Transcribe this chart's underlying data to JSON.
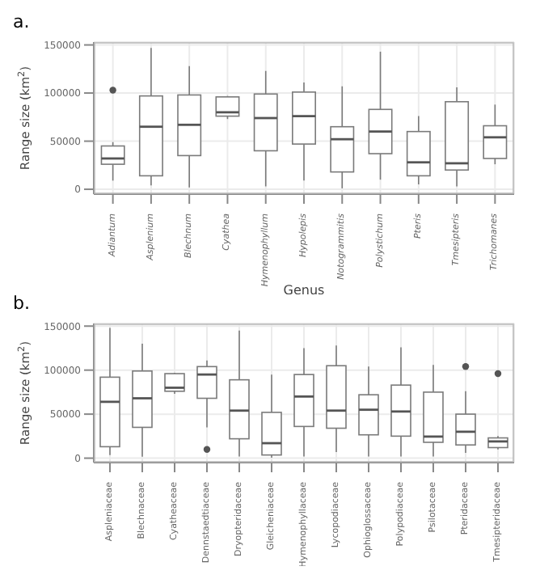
{
  "chart_data": [
    {
      "type": "box",
      "title": "a.",
      "xlabel": "Genus",
      "ylabel": "Range size (km$^{2}$)",
      "categories": [
        "Adiantum",
        "Asplenium",
        "Blechnum",
        "Cyathea",
        "Hymenophyllum",
        "Hypolepis",
        "Notogrammitis",
        "Polystichum",
        "Pteris",
        "Tmesipteris",
        "Trichomanes"
      ],
      "ylim": [
        -5000,
        153000
      ],
      "yticks": [
        0,
        50000,
        100000,
        150000
      ],
      "grid": true,
      "boxes": [
        {
          "low": 9000,
          "q1": 26000,
          "median": 32000,
          "q3": 45000,
          "high": 49000,
          "outliers": [
            103000
          ]
        },
        {
          "low": 4000,
          "q1": 14000,
          "median": 65000,
          "q3": 97000,
          "high": 147000
        },
        {
          "low": 2000,
          "q1": 35000,
          "median": 67000,
          "q3": 98000,
          "high": 128000
        },
        {
          "low": 73000,
          "q1": 76000,
          "median": 80000,
          "q3": 96000,
          "high": 97000
        },
        {
          "low": 3000,
          "q1": 40000,
          "median": 74000,
          "q3": 99000,
          "high": 123000
        },
        {
          "low": 9000,
          "q1": 47000,
          "median": 76000,
          "q3": 101000,
          "high": 111000
        },
        {
          "low": 1000,
          "q1": 18000,
          "median": 52000,
          "q3": 65000,
          "high": 107000
        },
        {
          "low": 10000,
          "q1": 37000,
          "median": 60000,
          "q3": 83000,
          "high": 143000
        },
        {
          "low": 5000,
          "q1": 14000,
          "median": 28000,
          "q3": 60000,
          "high": 76000
        },
        {
          "low": 3000,
          "q1": 20000,
          "median": 27000,
          "q3": 91000,
          "high": 106000
        },
        {
          "low": 26000,
          "q1": 32000,
          "median": 54000,
          "q3": 66000,
          "high": 88000
        }
      ]
    },
    {
      "type": "box",
      "title": "b.",
      "ylabel": "Range size (km$^{2}$)",
      "categories": [
        "Aspleniaceae",
        "Blechnaceae",
        "Cyatheaceae",
        "Dennstaedtiaceae",
        "Dryopteridaceae",
        "Gleicheniaceae",
        "Hymenophyllaceae",
        "Lycopodiaceae",
        "Ophioglossaceae",
        "Polypodiaceae",
        "Psilotaceae",
        "Pteridaceae",
        "Tmesipteridaceae"
      ],
      "ylim": [
        -5000,
        153000
      ],
      "yticks": [
        0,
        50000,
        100000,
        150000
      ],
      "grid": true,
      "boxes": [
        {
          "low": 3600,
          "q1": 13000,
          "median": 64000,
          "q3": 92000,
          "high": 148000
        },
        {
          "low": 1600,
          "q1": 35000,
          "median": 68000,
          "q3": 99000,
          "high": 130000
        },
        {
          "low": 73000,
          "q1": 76000,
          "median": 80000,
          "q3": 96000,
          "high": 97000
        },
        {
          "low": 35000,
          "q1": 68000,
          "median": 95000,
          "q3": 104000,
          "high": 111000,
          "outliers": [
            10000
          ]
        },
        {
          "low": 2000,
          "q1": 22000,
          "median": 54000,
          "q3": 89000,
          "high": 145000
        },
        {
          "low": 500,
          "q1": 3600,
          "median": 17000,
          "q3": 52000,
          "high": 95000
        },
        {
          "low": 2000,
          "q1": 36000,
          "median": 70000,
          "q3": 95000,
          "high": 125000
        },
        {
          "low": 7000,
          "q1": 34000,
          "median": 54000,
          "q3": 105000,
          "high": 128000
        },
        {
          "low": 2000,
          "q1": 26500,
          "median": 55000,
          "q3": 72000,
          "high": 104000
        },
        {
          "low": 2000,
          "q1": 25000,
          "median": 53000,
          "q3": 83000,
          "high": 126000
        },
        {
          "low": 2000,
          "q1": 18000,
          "median": 24500,
          "q3": 75000,
          "high": 106000
        },
        {
          "low": 6000,
          "q1": 15000,
          "median": 30000,
          "q3": 50000,
          "high": 76000,
          "outliers": [
            104000
          ]
        },
        {
          "low": 10000,
          "q1": 12000,
          "median": 19000,
          "q3": 23000,
          "high": 25000,
          "outliers": [
            96000
          ]
        }
      ]
    }
  ]
}
